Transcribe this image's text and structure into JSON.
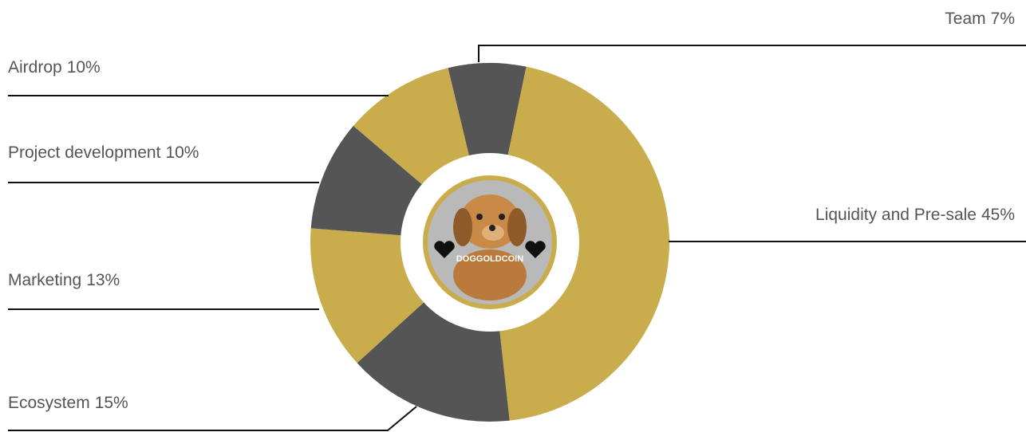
{
  "chart_data": {
    "type": "donut",
    "categories": [
      "Team",
      "Liquidity and Pre-sale",
      "Ecosystem",
      "Marketing",
      "Project development",
      "Airdrop"
    ],
    "values": [
      7,
      45,
      15,
      13,
      10,
      10
    ],
    "value_labels": [
      "7%",
      "45%",
      "15%",
      "13%",
      "10%",
      "10%"
    ],
    "colors": [
      "#555555",
      "#c9ac4b",
      "#555555",
      "#c9ac4b",
      "#555555",
      "#c9ac4b"
    ],
    "center_label": "DOGGOLDCOIN"
  }
}
